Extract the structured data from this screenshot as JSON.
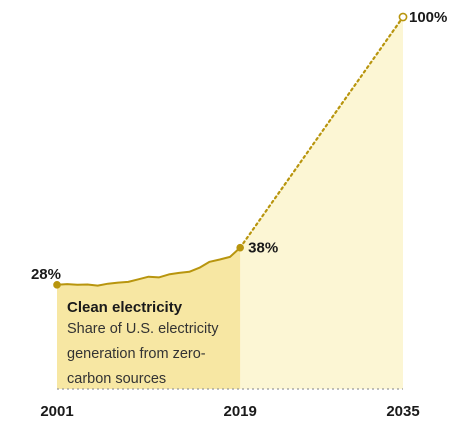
{
  "chart_data": {
    "type": "line",
    "x_ticks": [
      "2001",
      "2019",
      "2035"
    ],
    "series": [
      {
        "segment": "historical",
        "x": [
          2001,
          2002,
          2003,
          2004,
          2005,
          2006,
          2007,
          2008,
          2009,
          2010,
          2011,
          2012,
          2013,
          2014,
          2015,
          2016,
          2017,
          2018,
          2019
        ],
        "y": [
          28,
          28.2,
          28.0,
          28.1,
          27.8,
          28.3,
          28.6,
          28.8,
          29.5,
          30.2,
          30.0,
          30.8,
          31.2,
          31.5,
          32.6,
          34.2,
          34.8,
          35.5,
          38
        ]
      },
      {
        "segment": "projection",
        "x": [
          2019,
          2035
        ],
        "y": [
          38,
          100
        ]
      }
    ],
    "point_labels": [
      {
        "x": 2001,
        "y": 28,
        "text": "28%"
      },
      {
        "x": 2019,
        "y": 38,
        "text": "38%"
      },
      {
        "x": 2035,
        "y": 100,
        "text": "100%"
      }
    ],
    "annotation": {
      "title": "Clean electricity",
      "lines": [
        "Share of U.S. electricity",
        "generation from zero-",
        "carbon sources"
      ]
    },
    "xlim": [
      2001,
      2035
    ],
    "ylim": [
      0,
      100
    ],
    "colors": {
      "line": "#b8950e",
      "fill_historical": "#f7e7a3",
      "fill_projection": "#fcf6d4"
    }
  }
}
